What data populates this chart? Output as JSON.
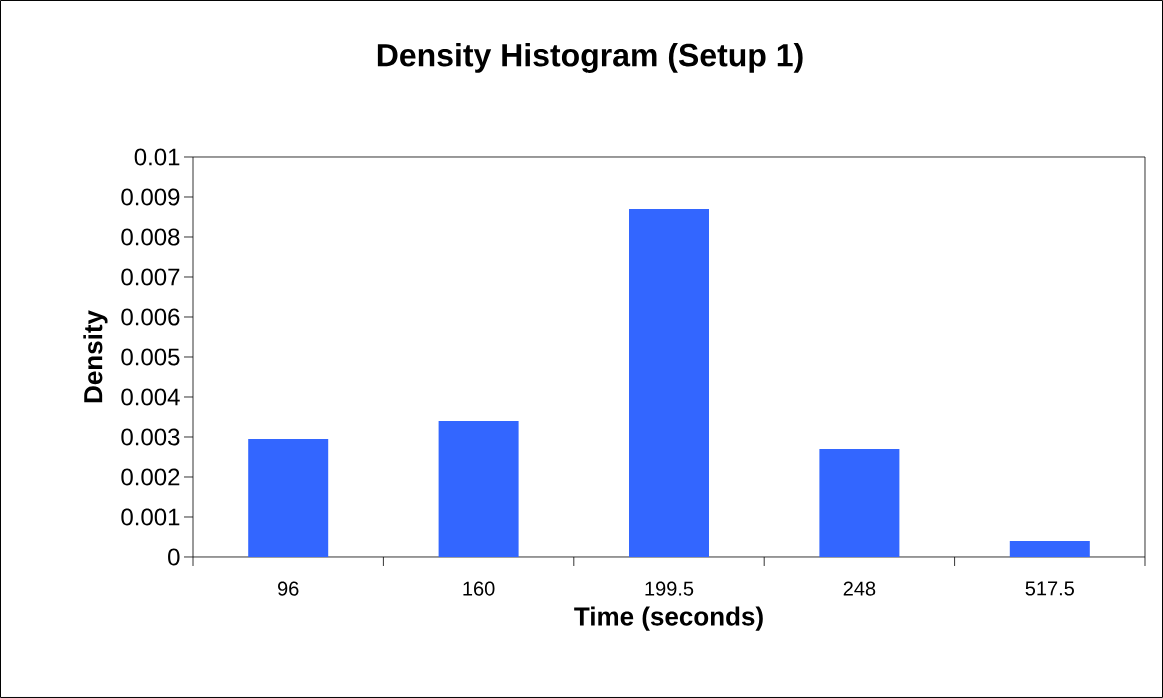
{
  "chart_data": {
    "type": "bar",
    "title": "Density Histogram (Setup 1)",
    "xlabel": "Time (seconds)",
    "ylabel": "Density",
    "categories": [
      "96",
      "160",
      "199.5",
      "248",
      "517.5"
    ],
    "values": [
      0.00295,
      0.0034,
      0.0087,
      0.0027,
      0.0004
    ],
    "color": "#3366ff",
    "ylim": [
      0,
      0.01
    ],
    "yticks": [
      0,
      0.001,
      0.002,
      0.003,
      0.004,
      0.005,
      0.006,
      0.007,
      0.008,
      0.009,
      0.01
    ]
  }
}
